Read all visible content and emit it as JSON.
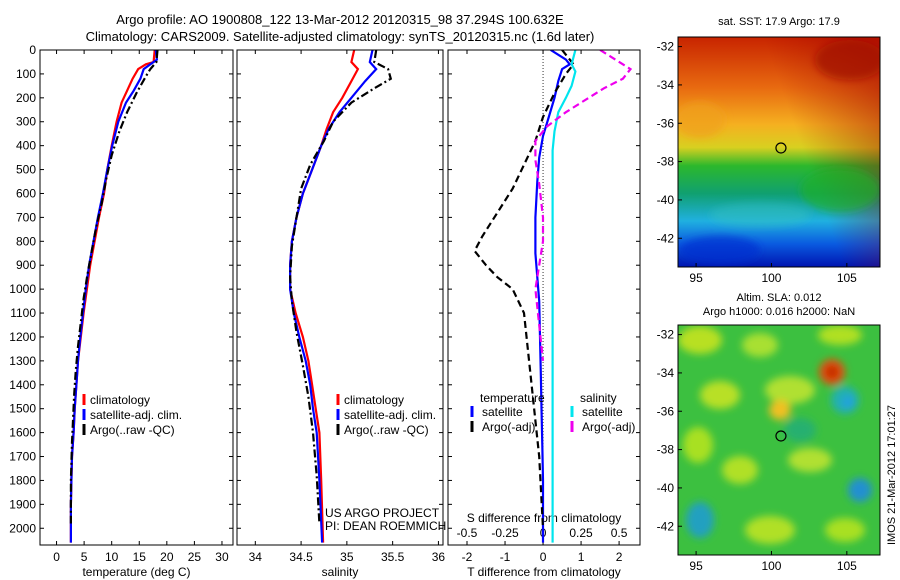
{
  "title_line1": "Argo profile: AO 1900808_122 13-Mar-2012 20120315_98 37.294S 100.632E",
  "title_line2": "Climatology: CARS2009. Satellite-adjusted climatology: synTS_20120315.nc (1.6d later)",
  "colors": {
    "climatology": "#ff0000",
    "satellite": "#0000ff",
    "argo": "#000000",
    "sat_salinity": "#00e5ee",
    "argo_salinity_adj": "#ee00ee"
  },
  "chart_data": [
    {
      "type": "line",
      "panel": "temperature",
      "xlabel": "temperature (deg C)",
      "x_ticks": [
        "0",
        "5",
        "10",
        "15",
        "20",
        "25",
        "30"
      ],
      "xlim": [
        -3,
        32
      ],
      "y_ticks": [
        "0",
        "100",
        "200",
        "300",
        "400",
        "500",
        "600",
        "700",
        "800",
        "900",
        "1000",
        "1100",
        "1200",
        "1300",
        "1400",
        "1500",
        "1600",
        "1700",
        "1800",
        "1900",
        "2000"
      ],
      "ylim": [
        2070,
        0
      ],
      "legend": [
        "climatology",
        "satellite-adj. clim.",
        "Argo(..raw -QC)"
      ],
      "series": [
        {
          "name": "climatology",
          "style": "solid",
          "color_key": "climatology",
          "x": [
            17.8,
            17.6,
            16.2,
            14.8,
            13.8,
            12.8,
            11.8,
            10.9,
            10.0,
            9.2,
            8.6,
            7.7,
            6.9,
            6.1,
            5.5,
            4.9,
            4.4,
            3.9,
            3.6,
            3.3,
            3.1,
            2.8,
            2.7,
            2.6,
            2.6
          ],
          "y": [
            0,
            50,
            60,
            80,
            120,
            170,
            220,
            300,
            400,
            500,
            600,
            700,
            800,
            900,
            1000,
            1100,
            1200,
            1300,
            1400,
            1500,
            1600,
            1700,
            1800,
            1900,
            2060
          ]
        },
        {
          "name": "satellite-adj. clim.",
          "style": "solid",
          "color_key": "satellite",
          "x": [
            18.0,
            18.2,
            17.0,
            15.8,
            15.2,
            14.0,
            12.6,
            11.2,
            10.1,
            9.2,
            8.4,
            7.5,
            6.7,
            5.9,
            5.3,
            4.8,
            4.3,
            3.9,
            3.6,
            3.3,
            3.1,
            2.8,
            2.7,
            2.6,
            2.6
          ],
          "y": [
            0,
            40,
            60,
            80,
            120,
            170,
            220,
            300,
            400,
            500,
            600,
            700,
            800,
            900,
            1000,
            1100,
            1200,
            1300,
            1400,
            1500,
            1600,
            1700,
            1800,
            1900,
            2060
          ]
        },
        {
          "name": "Argo(..raw -QC)",
          "style": "dashdot",
          "color_key": "argo",
          "x": [
            18.3,
            18.1,
            17.0,
            16.2,
            14.5,
            12.8,
            11.4,
            10.0,
            9.0,
            8.2,
            7.2,
            6.4,
            5.6,
            4.9,
            4.4,
            3.9,
            3.5,
            3.2,
            3.0,
            2.8,
            2.6,
            2.6
          ],
          "y": [
            0,
            50,
            80,
            110,
            180,
            260,
            340,
            440,
            540,
            640,
            740,
            840,
            940,
            1040,
            1140,
            1240,
            1340,
            1440,
            1540,
            1640,
            1800,
            1980
          ]
        }
      ]
    },
    {
      "type": "line",
      "panel": "salinity",
      "xlabel": "salinity",
      "x_ticks": [
        "34",
        "34.5",
        "35",
        "35.5",
        "36"
      ],
      "xlim": [
        33.8,
        36.05
      ],
      "y_ticks": [],
      "ylim": [
        2070,
        0
      ],
      "legend": [
        "climatology",
        "satellite-adj. clim.",
        "Argo(..raw -QC)"
      ],
      "annotation": [
        "US ARGO PROJECT",
        "PI: DEAN ROEMMICH"
      ],
      "series": [
        {
          "name": "climatology",
          "style": "solid",
          "color_key": "climatology",
          "x": [
            35.08,
            35.05,
            35.12,
            35.05,
            34.95,
            34.85,
            34.78,
            34.72,
            34.62,
            34.52,
            34.45,
            34.4,
            34.38,
            34.38,
            34.44,
            34.52,
            34.58,
            34.62,
            34.66,
            34.7,
            34.72,
            34.74
          ],
          "y": [
            0,
            50,
            80,
            130,
            200,
            260,
            330,
            400,
            500,
            600,
            700,
            800,
            900,
            1000,
            1100,
            1200,
            1300,
            1400,
            1500,
            1600,
            1800,
            2060
          ]
        },
        {
          "name": "satellite-adj. clim.",
          "style": "solid",
          "color_key": "satellite",
          "x": [
            35.28,
            35.25,
            35.32,
            35.2,
            35.05,
            34.92,
            34.8,
            34.72,
            34.62,
            34.52,
            34.45,
            34.4,
            34.38,
            34.38,
            34.42,
            34.48,
            34.55,
            34.6,
            34.63,
            34.67,
            34.7,
            34.73
          ],
          "y": [
            0,
            50,
            80,
            130,
            200,
            260,
            330,
            400,
            500,
            600,
            700,
            800,
            900,
            1000,
            1100,
            1200,
            1300,
            1400,
            1500,
            1600,
            1800,
            2060
          ]
        },
        {
          "name": "Argo(..raw -QC)",
          "style": "dashdot",
          "color_key": "argo",
          "x": [
            35.32,
            35.3,
            35.45,
            35.48,
            35.3,
            35.05,
            34.85,
            34.75,
            34.6,
            34.5,
            34.45,
            34.4,
            34.38,
            34.4,
            34.45,
            34.52,
            34.58,
            34.63,
            34.67,
            34.7
          ],
          "y": [
            0,
            50,
            80,
            120,
            160,
            220,
            300,
            380,
            480,
            580,
            700,
            820,
            950,
            1050,
            1180,
            1320,
            1450,
            1600,
            1780,
            1980
          ]
        }
      ]
    },
    {
      "type": "line",
      "panel": "difference",
      "xlabel": "T difference from climatology",
      "x_ticks": [
        "-2",
        "-1",
        "0",
        "1",
        "2"
      ],
      "xlim": [
        -2.5,
        2.55
      ],
      "top_axis_label": "S difference from climatology",
      "top_ticks": [
        "-0.5",
        "-0.25",
        "0",
        "0.25",
        "0.5"
      ],
      "y_ticks": [],
      "ylim": [
        2070,
        0
      ],
      "legend_titles": [
        "temperature",
        "salinity"
      ],
      "legend": [
        "satellite",
        "Argo(-adj)",
        "satellite",
        "Argo(-adj)"
      ],
      "series": [
        {
          "name": "satellite",
          "group": "temperature",
          "style": "solid",
          "color_key": "satellite",
          "x": [
            0.2,
            0.6,
            0.7,
            0.5,
            0.4,
            0.3,
            0.15,
            0.0,
            -0.1,
            -0.15,
            -0.2,
            -0.2,
            -0.15,
            -0.1,
            -0.08,
            -0.06,
            -0.04,
            -0.02,
            0.0,
            0.0,
            0.0
          ],
          "y": [
            0,
            40,
            60,
            80,
            130,
            200,
            280,
            360,
            450,
            550,
            700,
            850,
            950,
            1050,
            1200,
            1350,
            1500,
            1650,
            1800,
            1950,
            2060
          ]
        },
        {
          "name": "Argo(-adj)",
          "group": "temperature",
          "style": "dashed",
          "color_key": "argo",
          "x": [
            0.5,
            0.8,
            0.6,
            0.3,
            0.0,
            -0.2,
            -0.5,
            -0.8,
            -1.2,
            -1.6,
            -1.8,
            -1.5,
            -1.2,
            -0.8,
            -0.5,
            -0.4,
            -0.3,
            -0.2,
            -0.1,
            -0.05,
            0.0
          ],
          "y": [
            0,
            60,
            100,
            180,
            280,
            380,
            480,
            580,
            680,
            780,
            840,
            900,
            950,
            1000,
            1100,
            1250,
            1400,
            1550,
            1700,
            1850,
            2000
          ]
        },
        {
          "name": "satellite",
          "group": "salinity",
          "style": "solid",
          "color_key": "sat_salinity",
          "x": [
            0.85,
            0.75,
            0.85,
            0.75,
            0.6,
            0.4,
            0.3,
            0.25,
            0.25,
            0.25,
            0.25,
            0.25,
            0.25,
            0.25,
            0.25,
            0.25,
            0.25,
            0.25,
            0.25,
            0.25
          ],
          "y": [
            0,
            60,
            90,
            150,
            200,
            260,
            340,
            420,
            520,
            620,
            720,
            820,
            920,
            1020,
            1200,
            1400,
            1600,
            1800,
            1950,
            2060
          ]
        },
        {
          "name": "Argo(-adj)",
          "group": "salinity",
          "style": "dashed",
          "color_key": "argo_salinity_adj",
          "x": [
            1.5,
            2.3,
            2.1,
            1.6,
            1.2,
            0.6,
            0.1,
            -0.2,
            -0.2,
            -0.1,
            0.0,
            0.0,
            -0.1,
            -0.2,
            -0.1,
            0.0
          ],
          "y": [
            0,
            80,
            120,
            160,
            200,
            260,
            320,
            380,
            460,
            560,
            700,
            800,
            900,
            1000,
            1150,
            1300
          ]
        }
      ]
    }
  ],
  "map_top": {
    "title": "sat. SST: 17.9 Argo: 17.9",
    "y_ticks": [
      "-32",
      "-34",
      "-36",
      "-38",
      "-40",
      "-42"
    ],
    "x_ticks": [
      "95",
      "100",
      "105"
    ],
    "marker": {
      "lon": 100.63,
      "lat": -37.29
    }
  },
  "map_bottom": {
    "title1": "Altim. SLA: 0.012",
    "title2": "Argo h1000: 0.016 h2000: NaN",
    "y_ticks": [
      "-32",
      "-34",
      "-36",
      "-38",
      "-40",
      "-42"
    ],
    "x_ticks": [
      "95",
      "100",
      "105"
    ],
    "marker": {
      "lon": 100.63,
      "lat": -37.29
    }
  },
  "stamp": "IMOS 21-Mar-2012 17:01:27"
}
